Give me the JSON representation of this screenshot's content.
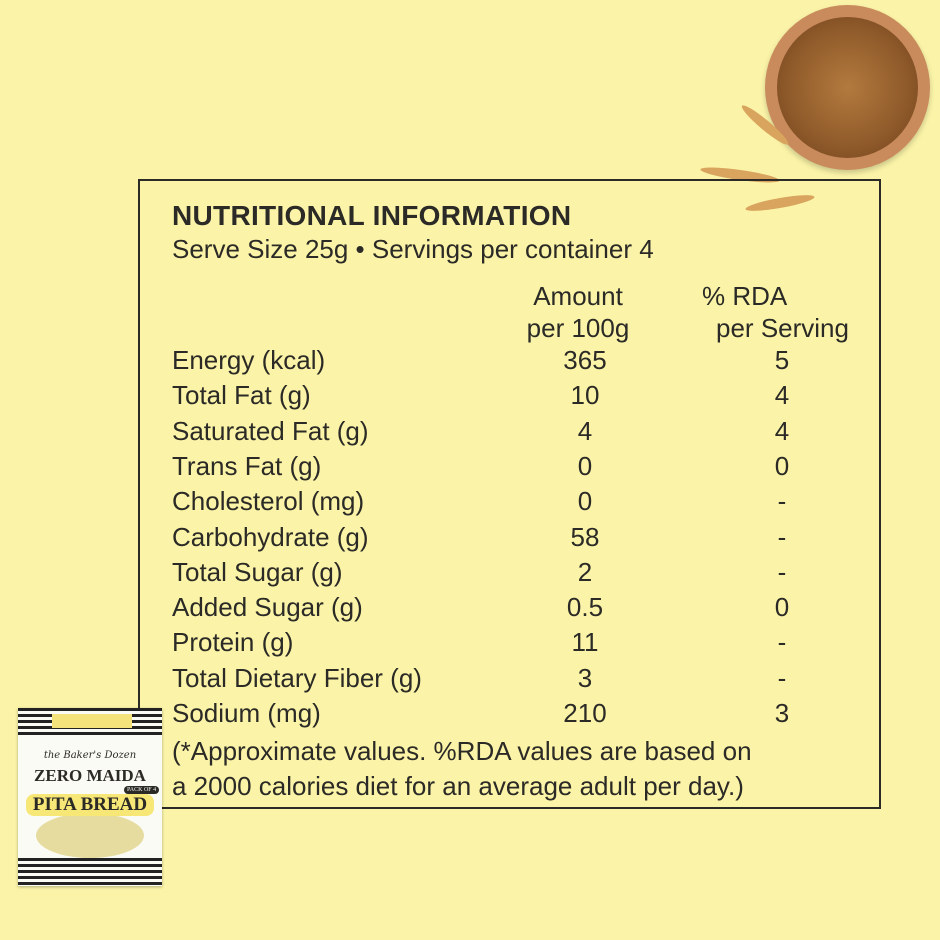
{
  "title": "NUTRITIONAL INFORMATION",
  "subtitle": "Serve Size 25g • Servings per container 4",
  "columns": {
    "amount": [
      "Amount",
      "per 100g"
    ],
    "rda": [
      "% RDA",
      "per Serving"
    ]
  },
  "rows": [
    {
      "label": "Energy (kcal)",
      "amount": "365",
      "rda": "5"
    },
    {
      "label": "Total Fat (g)",
      "amount": "10",
      "rda": "4"
    },
    {
      "label": "Saturated Fat (g)",
      "amount": "4",
      "rda": "4"
    },
    {
      "label": "Trans Fat (g)",
      "amount": "0",
      "rda": "0"
    },
    {
      "label": "Cholesterol (mg)",
      "amount": "0",
      "rda": "-"
    },
    {
      "label": "Carbohydrate (g)",
      "amount": "58",
      "rda": "-"
    },
    {
      "label": "Total Sugar (g)",
      "amount": "2",
      "rda": "-"
    },
    {
      "label": "Added Sugar (g)",
      "amount": "0.5",
      "rda": "0"
    },
    {
      "label": "Protein (g)",
      "amount": "11",
      "rda": "-"
    },
    {
      "label": "Total Dietary Fiber (g)",
      "amount": "3",
      "rda": "-"
    },
    {
      "label": "Sodium (mg)",
      "amount": "210",
      "rda": "3"
    }
  ],
  "note": [
    "(*Approximate values. %RDA values are based on",
    "a 2000 calories diet for an average adult per day.)"
  ],
  "package": {
    "brand": "the Baker's Dozen",
    "line1": "ZERO MAIDA",
    "line2": "PITA BREAD",
    "badge": "PACK OF 4"
  },
  "colors": {
    "background": "#fbf4a8",
    "text": "#2b2a26"
  }
}
